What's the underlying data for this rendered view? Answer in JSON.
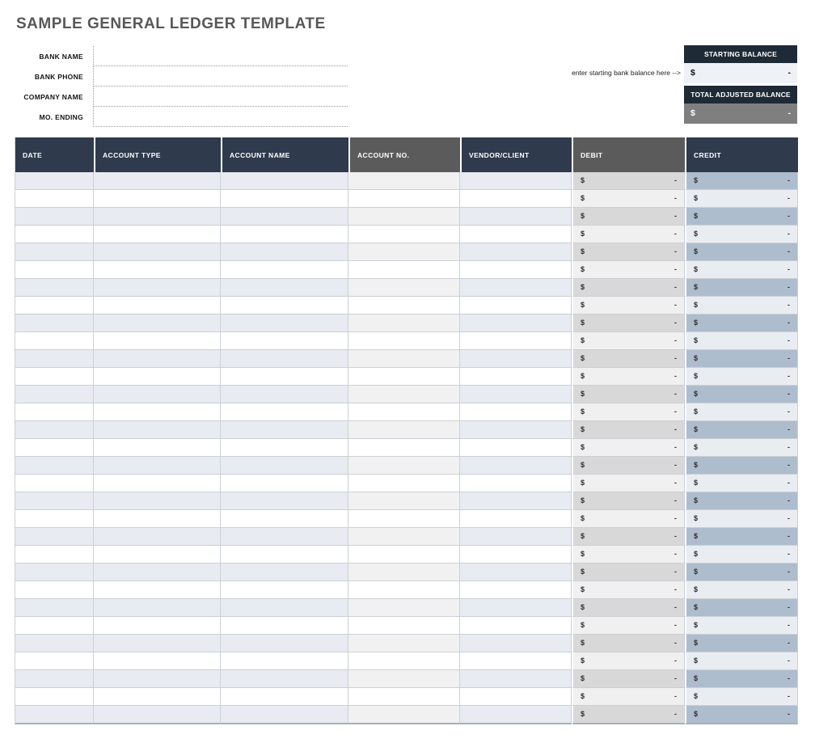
{
  "page": {
    "title": "SAMPLE GENERAL LEDGER TEMPLATE"
  },
  "form": {
    "fields": [
      {
        "label": "BANK NAME",
        "value": ""
      },
      {
        "label": "BANK PHONE",
        "value": ""
      },
      {
        "label": "COMPANY NAME",
        "value": ""
      },
      {
        "label": "MO. ENDING",
        "value": ""
      }
    ]
  },
  "balance_panel": {
    "annotation": "enter starting bank balance here -->",
    "starting": {
      "header": "STARTING BALANCE",
      "currency": "$",
      "value": "-"
    },
    "total": {
      "header": "TOTAL ADJUSTED BALANCE",
      "currency": "$",
      "value": "-"
    }
  },
  "table": {
    "columns": [
      {
        "label": "DATE",
        "variant": "navy"
      },
      {
        "label": "ACCOUNT TYPE",
        "variant": "navy"
      },
      {
        "label": "ACCOUNT NAME",
        "variant": "navy"
      },
      {
        "label": "ACCOUNT NO.",
        "variant": "gray"
      },
      {
        "label": "VENDOR/CLIENT",
        "variant": "navy"
      },
      {
        "label": "DEBIT",
        "variant": "gray",
        "type": "money"
      },
      {
        "label": "CREDIT",
        "variant": "navy",
        "type": "money"
      }
    ],
    "row_count": 31,
    "money_cell": {
      "currency": "$",
      "value": "-"
    }
  },
  "colors": {
    "title_text": "#58585a",
    "navy_header": "#2f3b4c",
    "gray_header": "#5b5b5b",
    "balance_header": "#1f2a37",
    "starting_value_bg": "#eef1f5",
    "total_value_bg": "#7f7f7f",
    "row_blue": "#e8ebf1",
    "accno_odd": "#f1f1f1",
    "debit_odd": "#d8d8d8",
    "debit_even": "#f0f0f0",
    "credit_odd": "#aebdcd",
    "credit_even": "#e9edf2",
    "grid_line": "#cbd0d6"
  }
}
